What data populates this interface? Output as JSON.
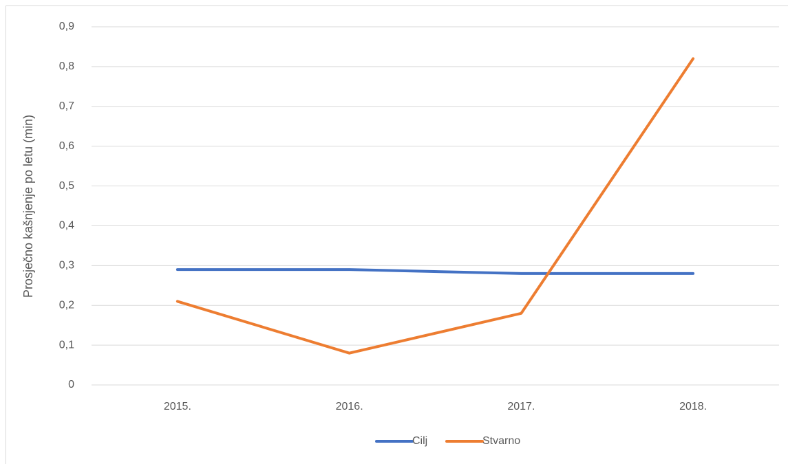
{
  "chart_data": {
    "type": "line",
    "y_label": "Prosječno kašnjenje po letu (min)",
    "categories": [
      "2015.",
      "2016.",
      "2017.",
      "2018."
    ],
    "series": [
      {
        "name": "Cilj",
        "color": "#4472c4",
        "values": [
          0.29,
          0.29,
          0.28,
          0.28
        ]
      },
      {
        "name": "Stvarno",
        "color": "#ed7d31",
        "values": [
          0.21,
          0.08,
          0.18,
          0.82
        ]
      }
    ],
    "ylim": [
      0,
      0.9
    ],
    "yticks": [
      0,
      {
        "value": 0.1,
        "label": "0,1"
      },
      {
        "value": 0.2,
        "label": "0,2"
      },
      {
        "value": 0.3,
        "label": "0,3"
      },
      {
        "value": 0.4,
        "label": "0,4"
      },
      {
        "value": 0.5,
        "label": "0,5"
      },
      {
        "value": 0.6,
        "label": "0,6"
      },
      {
        "value": 0.7,
        "label": "0,7"
      },
      {
        "value": 0.8,
        "label": "0,8"
      },
      {
        "value": 0.9,
        "label": "0,9"
      }
    ],
    "grid": true,
    "legend": "bottom"
  }
}
